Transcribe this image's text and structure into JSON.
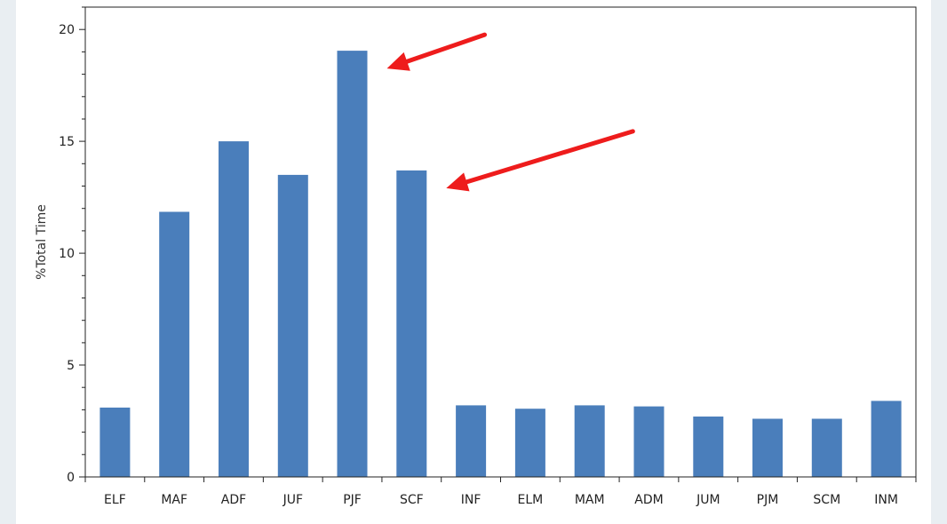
{
  "chart_data": {
    "type": "bar",
    "title": "",
    "xlabel": "",
    "ylabel": "%Total Time",
    "categories": [
      "ELF",
      "MAF",
      "ADF",
      "JUF",
      "PJF",
      "SCF",
      "INF",
      "ELM",
      "MAM",
      "ADM",
      "JUM",
      "PJM",
      "SCM",
      "INM"
    ],
    "values": [
      3.1,
      11.85,
      15.0,
      13.5,
      19.05,
      13.7,
      3.2,
      3.05,
      3.2,
      3.15,
      2.7,
      2.6,
      2.6,
      3.4
    ],
    "ylim": [
      0,
      21
    ],
    "yticks": [
      0,
      5,
      10,
      15,
      20
    ],
    "grid": false,
    "legend": "none",
    "bar_color": "#4a7ebb",
    "annotations": [
      {
        "type": "arrow",
        "points_to": "PJF",
        "color": "#ee1c1c"
      },
      {
        "type": "arrow",
        "points_to": "SCF",
        "color": "#ee1c1c"
      }
    ]
  }
}
